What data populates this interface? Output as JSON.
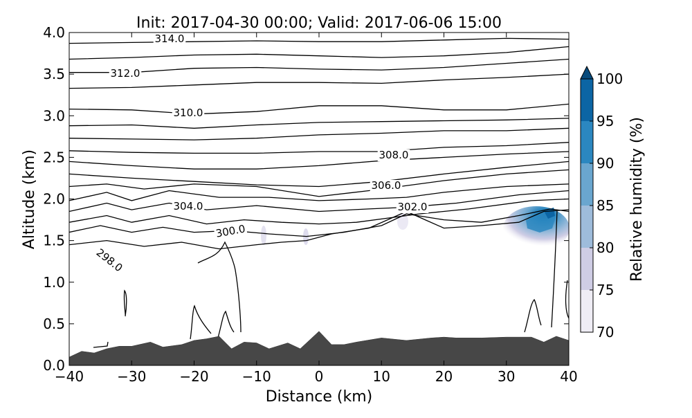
{
  "chart_data": {
    "type": "contour",
    "title": "Init: 2017-04-30 00:00; Valid: 2017-06-06 15:00",
    "xlabel": "Distance (km)",
    "ylabel": "Altitude (km)",
    "xlim": [
      -40,
      40
    ],
    "ylim": [
      0.0,
      4.0
    ],
    "xticks": [
      "−40",
      "−30",
      "−20",
      "−10",
      "0",
      "10",
      "20",
      "30",
      "40"
    ],
    "yticks": [
      "0.0",
      "0.5",
      "1.0",
      "1.5",
      "2.0",
      "2.5",
      "3.0",
      "3.5",
      "4.0"
    ],
    "colorbar": {
      "label": "Relative humidity (%)",
      "ticks": [
        "70",
        "75",
        "80",
        "85",
        "90",
        "95",
        "100"
      ],
      "extend": "max",
      "colors": [
        "#efedf5",
        "#cfcde5",
        "#9ebcdb",
        "#6aa6cf",
        "#2b87c0",
        "#0c65a4",
        "#084b7c"
      ]
    },
    "terrain_color": "#474747",
    "contour_labels": [
      "314.0",
      "312.0",
      "310.0",
      "308.0",
      "306.0",
      "304.0",
      "302.0",
      "300.0",
      "298.0"
    ],
    "terrain": {
      "x": [
        -40,
        -38,
        -36,
        -34,
        -32,
        -30,
        -27,
        -25,
        -22,
        -20,
        -18,
        -16,
        -14,
        -12,
        -10,
        -8,
        -5,
        -3,
        0,
        2,
        4,
        6,
        10,
        14,
        18,
        20,
        22,
        26,
        30,
        34,
        36,
        38,
        40
      ],
      "y": [
        0.1,
        0.17,
        0.15,
        0.2,
        0.23,
        0.23,
        0.28,
        0.22,
        0.25,
        0.3,
        0.32,
        0.35,
        0.2,
        0.28,
        0.27,
        0.2,
        0.27,
        0.2,
        0.41,
        0.25,
        0.25,
        0.28,
        0.33,
        0.3,
        0.33,
        0.34,
        0.33,
        0.33,
        0.34,
        0.34,
        0.28,
        0.35,
        0.3
      ]
    },
    "isentropes": [
      {
        "level": "314.0",
        "x": [
          -40,
          -30,
          -20,
          -10,
          0,
          10,
          20,
          30,
          40
        ],
        "y": [
          3.87,
          3.88,
          3.89,
          3.9,
          3.89,
          3.89,
          3.91,
          3.93,
          3.92
        ]
      },
      {
        "level": "313.5",
        "x": [
          -40,
          -30,
          -20,
          -10,
          0,
          10,
          20,
          30,
          40
        ],
        "y": [
          3.68,
          3.7,
          3.73,
          3.74,
          3.72,
          3.7,
          3.72,
          3.76,
          3.83
        ]
      },
      {
        "level": "312.0",
        "x": [
          -40,
          -30,
          -20,
          -10,
          0,
          10,
          20,
          30,
          40
        ],
        "y": [
          3.52,
          3.52,
          3.57,
          3.58,
          3.56,
          3.55,
          3.58,
          3.63,
          3.68
        ]
      },
      {
        "level": "311.5",
        "x": [
          -40,
          -30,
          -20,
          -10,
          0,
          10,
          20,
          30,
          40
        ],
        "y": [
          3.33,
          3.34,
          3.37,
          3.4,
          3.4,
          3.39,
          3.43,
          3.46,
          3.5
        ]
      },
      {
        "level": "310.0",
        "x": [
          -40,
          -30,
          -20,
          -10,
          0,
          10,
          20,
          30,
          40
        ],
        "y": [
          3.08,
          3.07,
          3.02,
          3.05,
          3.12,
          3.12,
          3.07,
          3.07,
          3.14
        ]
      },
      {
        "level": "309.5",
        "x": [
          -40,
          -30,
          -20,
          -10,
          0,
          10,
          20,
          30,
          40
        ],
        "y": [
          2.88,
          2.89,
          2.85,
          2.89,
          2.92,
          2.93,
          2.94,
          2.95,
          2.97
        ]
      },
      {
        "level": "309.0",
        "x": [
          -40,
          -30,
          -20,
          -10,
          0,
          10,
          20,
          30,
          40
        ],
        "y": [
          2.73,
          2.72,
          2.71,
          2.73,
          2.77,
          2.79,
          2.82,
          2.82,
          2.85
        ]
      },
      {
        "level": "308.0",
        "x": [
          -40,
          -30,
          -20,
          -10,
          0,
          10,
          20,
          30,
          40
        ],
        "y": [
          2.58,
          2.56,
          2.55,
          2.55,
          2.57,
          2.57,
          2.62,
          2.64,
          2.68
        ]
      },
      {
        "level": "307.5",
        "x": [
          -40,
          -30,
          -20,
          -10,
          0,
          10,
          20,
          30,
          40
        ],
        "y": [
          2.45,
          2.4,
          2.36,
          2.36,
          2.4,
          2.46,
          2.5,
          2.54,
          2.57
        ]
      },
      {
        "level": "306.0",
        "x": [
          -40,
          -30,
          -20,
          -10,
          0,
          10,
          20,
          30,
          40
        ],
        "y": [
          2.3,
          2.25,
          2.21,
          2.17,
          2.15,
          2.21,
          2.3,
          2.38,
          2.45
        ]
      },
      {
        "level": "305.5",
        "x": [
          -40,
          -34,
          -28,
          -20,
          -10,
          0,
          8,
          20,
          30,
          40
        ],
        "y": [
          2.15,
          2.18,
          2.12,
          2.18,
          2.15,
          2.03,
          2.1,
          2.22,
          2.3,
          2.35
        ]
      },
      {
        "level": "304.0",
        "x": [
          -40,
          -34,
          -30,
          -24,
          -16,
          -8,
          0,
          8,
          14,
          20,
          30,
          40
        ],
        "y": [
          1.98,
          2.08,
          1.98,
          2.1,
          2.02,
          2.02,
          1.98,
          2.0,
          2.02,
          2.08,
          2.15,
          2.18
        ]
      },
      {
        "level": "303.5",
        "x": [
          -40,
          -34,
          -30,
          -24,
          -18,
          -10,
          0,
          8,
          14,
          22,
          32,
          40
        ],
        "y": [
          1.85,
          1.95,
          1.87,
          1.95,
          1.87,
          1.92,
          1.85,
          1.88,
          1.9,
          1.95,
          2.05,
          2.1
        ]
      },
      {
        "level": "302.0",
        "x": [
          -40,
          -34,
          -30,
          -24,
          -18,
          -12,
          -6,
          0,
          6,
          12,
          16,
          24,
          34,
          40
        ],
        "y": [
          1.72,
          1.8,
          1.72,
          1.8,
          1.7,
          1.75,
          1.72,
          1.7,
          1.72,
          1.78,
          1.82,
          1.88,
          1.98,
          2.0
        ]
      },
      {
        "level": "301.5",
        "x": [
          -40,
          -35,
          -30,
          -25,
          -20,
          -14,
          -8,
          -2,
          4,
          10,
          14,
          20,
          26,
          32,
          37,
          40
        ],
        "y": [
          1.6,
          1.68,
          1.6,
          1.66,
          1.6,
          1.62,
          1.58,
          1.55,
          1.6,
          1.68,
          1.82,
          1.75,
          1.72,
          1.8,
          1.88,
          1.85
        ]
      },
      {
        "level": "300.0",
        "x": [
          -40,
          -34,
          -28,
          -22,
          -16,
          -10,
          -6,
          -2,
          2,
          8,
          14,
          17,
          20,
          26,
          32,
          36,
          40
        ],
        "y": [
          1.45,
          1.5,
          1.43,
          1.48,
          1.4,
          1.45,
          1.48,
          1.5,
          1.58,
          1.65,
          1.85,
          1.75,
          1.65,
          1.68,
          1.72,
          1.85,
          1.87
        ]
      }
    ],
    "rh_region": {
      "x_center": 36,
      "altitude_center": 1.65,
      "max_value": 97
    }
  }
}
